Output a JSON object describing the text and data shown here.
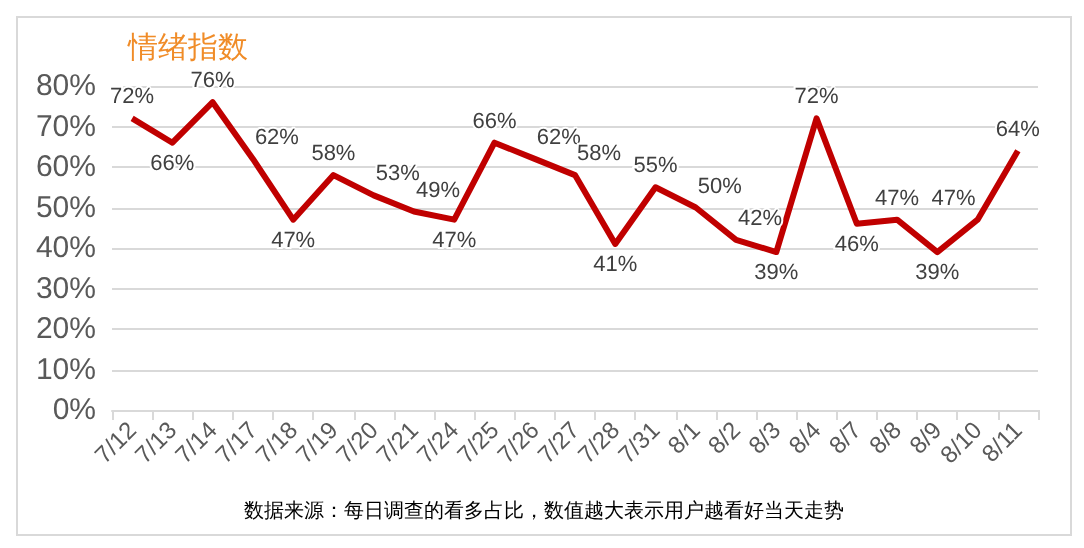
{
  "chart_data": {
    "type": "line",
    "title": "情绪指数",
    "categories": [
      "7/12",
      "7/13",
      "7/14",
      "7/17",
      "7/18",
      "7/19",
      "7/20",
      "7/21",
      "7/24",
      "7/25",
      "7/26",
      "7/27",
      "7/28",
      "7/31",
      "8/1",
      "8/2",
      "8/3",
      "8/4",
      "8/7",
      "8/8",
      "8/9",
      "8/10",
      "8/11"
    ],
    "series": [
      {
        "color": "#c00000",
        "values": [
          72,
          66,
          76,
          62,
          47,
          58,
          53,
          49,
          47,
          66,
          62,
          58,
          41,
          55,
          50,
          42,
          39,
          72,
          46,
          47,
          39,
          47,
          64
        ],
        "value_labels": [
          "72%",
          "66%",
          "76%",
          "62%",
          "47%",
          "58%",
          "53%",
          "49%",
          "47%",
          "66%",
          "62%",
          "58%",
          "41%",
          "55%",
          "50%",
          "42%",
          "39%",
          "72%",
          "46%",
          "47%",
          "39%",
          "47%",
          "64%"
        ]
      }
    ],
    "ylim": [
      0,
      80
    ],
    "yticks": [
      {
        "value": 0,
        "label": "0%"
      },
      {
        "value": 10,
        "label": "10%"
      },
      {
        "value": 20,
        "label": "20%"
      },
      {
        "value": 30,
        "label": "30%"
      },
      {
        "value": 40,
        "label": "40%"
      },
      {
        "value": 50,
        "label": "50%"
      },
      {
        "value": 60,
        "label": "60%"
      },
      {
        "value": 70,
        "label": "70%"
      },
      {
        "value": 80,
        "label": "80%"
      }
    ],
    "grid": "y",
    "marker": "none",
    "line_style": "solid",
    "annotations": [
      "数据来源：每日调查的看多占比，数值越大表示用户越看好当天走势"
    ]
  }
}
